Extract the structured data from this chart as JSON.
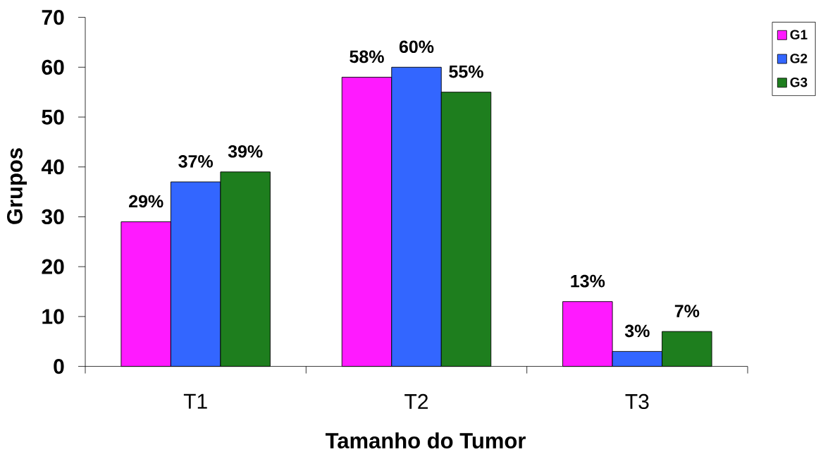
{
  "chart_data": {
    "type": "bar",
    "xlabel": "Tamanho do Tumor",
    "ylabel": "Grupos",
    "categories": [
      "T1",
      "T2",
      "T3"
    ],
    "series": [
      {
        "name": "G1",
        "color": "#ff1aff",
        "values": [
          29,
          58,
          13
        ],
        "value_labels": [
          "29%",
          "58%",
          "13%"
        ]
      },
      {
        "name": "G2",
        "color": "#3366ff",
        "values": [
          37,
          60,
          3
        ],
        "value_labels": [
          "37%",
          "60%",
          "3%"
        ]
      },
      {
        "name": "G3",
        "color": "#1e7e1e",
        "values": [
          39,
          55,
          7
        ],
        "value_labels": [
          "39%",
          "55%",
          "7%"
        ]
      }
    ],
    "ylim": [
      0,
      70
    ],
    "yticks": [
      0,
      10,
      20,
      30,
      40,
      50,
      60,
      70
    ],
    "legend": "top right"
  }
}
